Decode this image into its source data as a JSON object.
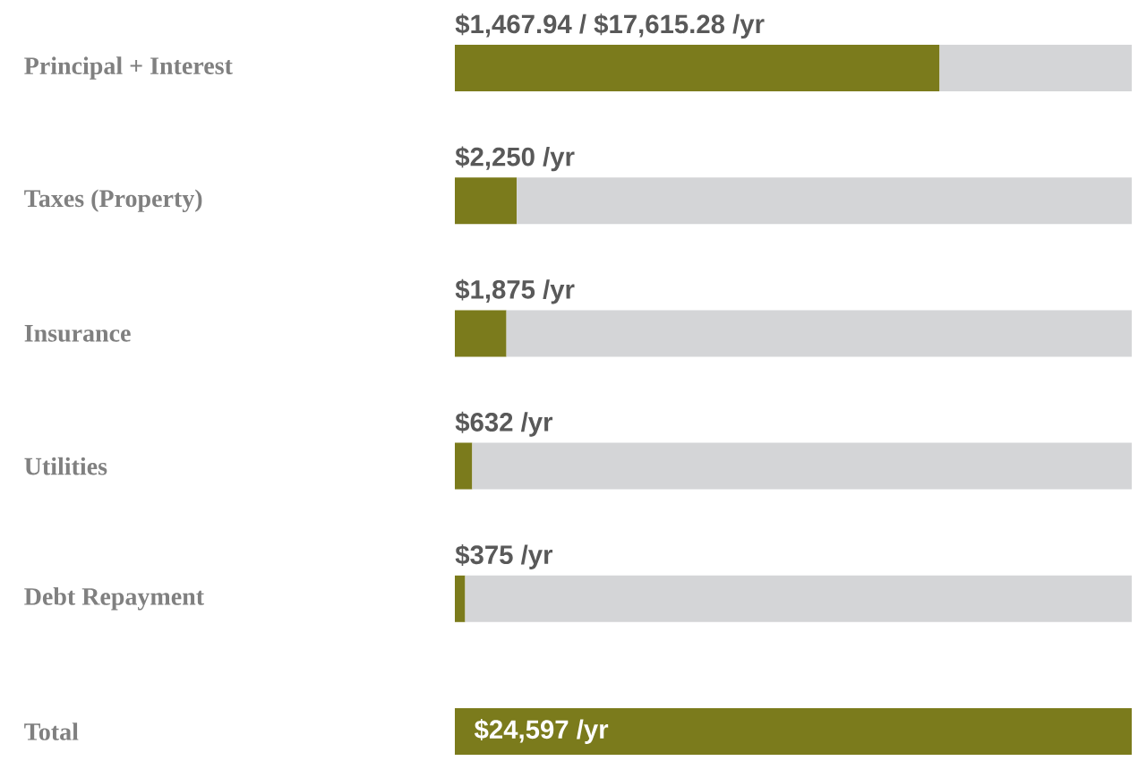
{
  "chart_data": {
    "type": "bar",
    "orientation": "horizontal",
    "stacked": true,
    "categories": [
      "Principal + Interest",
      "Taxes (Property)",
      "Insurance",
      "Utilities",
      "Debt Repayment",
      "Total"
    ],
    "xlim": [
      0,
      24597
    ],
    "series": [
      {
        "color": "#7b7b1c",
        "values": [
          17615.28,
          2250,
          1875,
          632,
          375,
          24597
        ],
        "value_labels": [
          "$1,467.94  /  $17,615.28 /yr",
          "$2,250 /yr",
          "$1,875 /yr",
          "$632 /yr",
          "$375 /yr",
          "$24,597 /yr"
        ]
      },
      {
        "color": "#d4d5d7",
        "values": [
          6981.72,
          22347,
          22722,
          23965,
          24222,
          null
        ]
      }
    ]
  }
}
